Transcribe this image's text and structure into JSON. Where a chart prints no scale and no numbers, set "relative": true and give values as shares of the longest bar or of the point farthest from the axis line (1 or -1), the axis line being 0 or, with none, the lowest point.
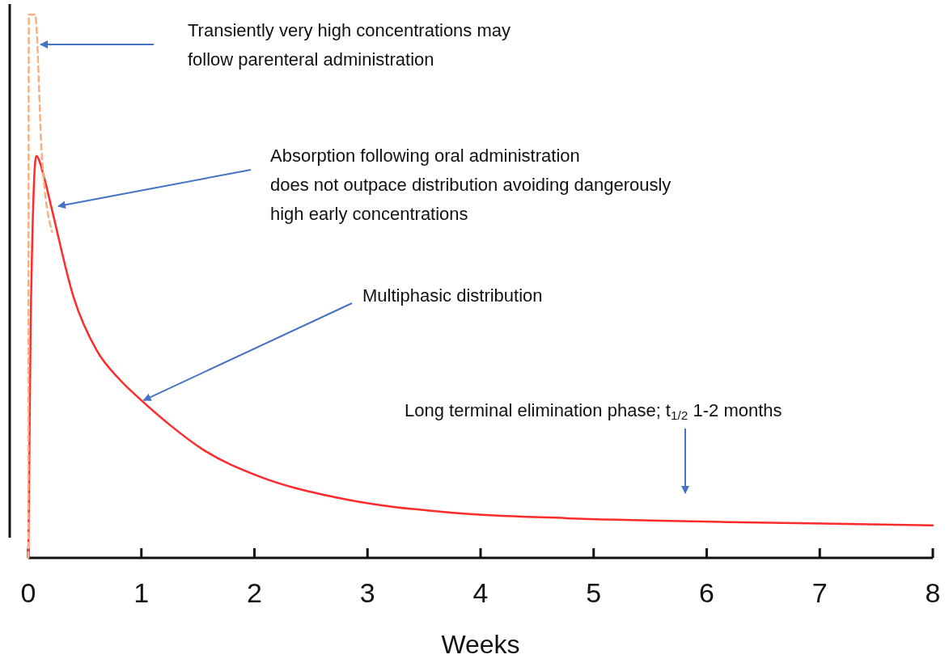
{
  "chart_data": {
    "type": "line",
    "relative": true,
    "xlabel": "Weeks",
    "xlim": [
      0,
      8
    ],
    "xticks": [
      0,
      1,
      2,
      3,
      4,
      5,
      6,
      7,
      8
    ],
    "series": [
      {
        "color": "#ff2a2a",
        "line_style": "solid",
        "x": [
          0,
          0.02,
          0.07,
          0.14,
          0.21,
          0.4,
          0.61,
          0.8,
          1.0,
          1.25,
          1.54,
          2.04,
          2.75,
          3.76,
          4.76,
          6.19,
          8.0
        ],
        "values": [
          0,
          0.42,
          0.74,
          0.7,
          0.64,
          0.48,
          0.38,
          0.33,
          0.29,
          0.245,
          0.2,
          0.15,
          0.11,
          0.083,
          0.073,
          0.066,
          0.06
        ]
      },
      {
        "color": "#f4b183",
        "line_style": "dashed",
        "x": [
          0,
          0.005,
          0.06,
          0.12,
          0.21
        ],
        "values": [
          0,
          1,
          1,
          0.74,
          0.6
        ]
      }
    ],
    "annotations": [
      "Transiently very high concentrations may\nfollow parenteral administration",
      "Absorption following oral administration\ndoes not outpace distribution avoiding dangerously\nhigh early concentrations",
      {
        "text": "Multiphasic distribution",
        "x": 1.02,
        "y": 0.29
      },
      "Long terminal elimination phase; t$_{1/2}$ 1-2 months"
    ]
  }
}
